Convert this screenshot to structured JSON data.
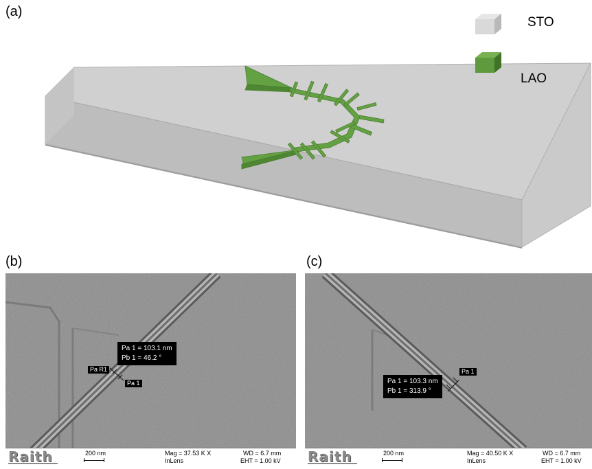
{
  "panels": {
    "a": {
      "label": "(a)"
    },
    "b": {
      "label": "(b)"
    },
    "c": {
      "label": "(c)"
    }
  },
  "legend": {
    "sto": {
      "label": "STO",
      "color": "#d9d9d9"
    },
    "lao": {
      "label": "LAO",
      "color": "#5f9a3e"
    }
  },
  "sem_b": {
    "measurement": {
      "line1": "Pa 1 = 103.1 nm",
      "line2": "Pb 1 = 46.2 °"
    },
    "tags": {
      "r1": "Pa R1",
      "p1": "Pa 1"
    },
    "databar": {
      "brand": "Raith",
      "scale": "200 nm",
      "mag": "Mag = 37.53 K X",
      "detector": "InLens",
      "wd": "WD = 6.7 mm",
      "eht": "EHT = 1.00 kV"
    }
  },
  "sem_c": {
    "measurement": {
      "line1": "Pa 1 = 103.3 nm",
      "line2": "Pb 1 = 313.9 °"
    },
    "tags": {
      "p1": "Pa 1"
    },
    "databar": {
      "brand": "Raith",
      "scale": "200 nm",
      "mag": "Mag = 40.50 K X",
      "detector": "InLens",
      "wd": "WD = 6.7 mm",
      "eht": "EHT = 1.00 kV"
    }
  }
}
